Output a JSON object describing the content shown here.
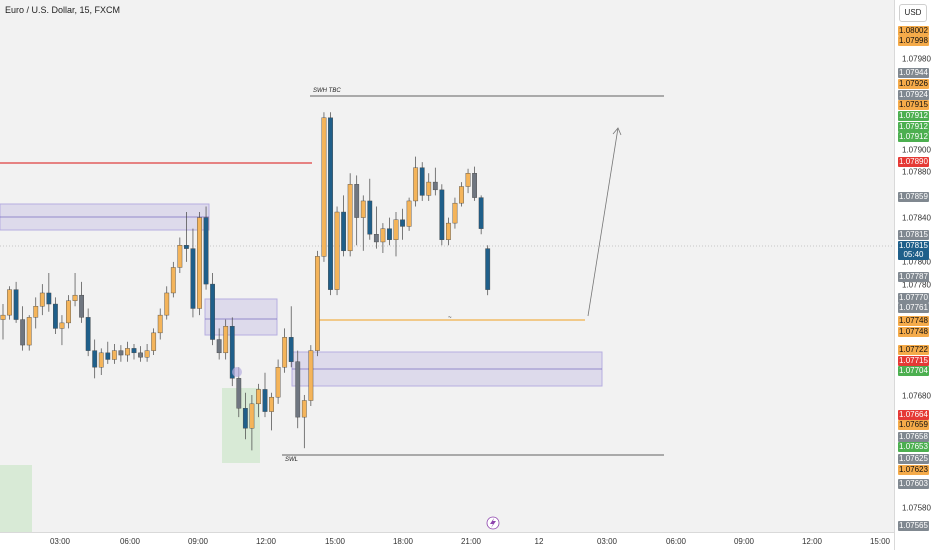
{
  "title": "Euro / U.S. Dollar, 15, FXCM",
  "currency_label": "USD",
  "colors": {
    "bull": "#f4b45a",
    "bear": "#1f5f8a",
    "bear_alt": "#6f7680",
    "zone_fill": "#b7aee0",
    "demand_fill": "#b9e0b4",
    "red_line": "#e04040",
    "orange_line": "#f0a020",
    "tag_gray": "#808890",
    "tag_orange": "#f5ab4a",
    "tag_green": "#4caf50",
    "tag_red": "#e53935",
    "tag_blue": "#1f5f8a"
  },
  "annotations": {
    "swh_label": "SWH TBC",
    "swl_label": "SWL",
    "mid_marker": "~",
    "lightning_icon": "lightning-icon"
  },
  "chart_data": {
    "type": "candlestick",
    "symbol": "EURUSD",
    "interval": "15",
    "ylim": [
      1.0756,
      1.0802
    ],
    "x_ticks": [
      "03:00",
      "06:00",
      "09:00",
      "12:00",
      "15:00",
      "18:00",
      "21:00",
      "12",
      "03:00",
      "06:00",
      "09:00",
      "12:00",
      "15:00"
    ],
    "y_ticks": [
      "1.07980",
      "1.07900",
      "1.07880",
      "1.07840",
      "1.07800",
      "1.07780",
      "1.07680",
      "1.07580"
    ],
    "price_tags": [
      {
        "label": "1.08002",
        "value": 1.08002,
        "color": "tag_orange"
      },
      {
        "label": "1.07998",
        "value": 1.07998,
        "color": "tag_orange"
      },
      {
        "label": "1.07944",
        "value": 1.07944,
        "color": "tag_gray"
      },
      {
        "label": "1.07926",
        "value": 1.07926,
        "color": "tag_orange"
      },
      {
        "label": "1.07924",
        "value": 1.07924,
        "color": "tag_gray"
      },
      {
        "label": "1.07915",
        "value": 1.07915,
        "color": "tag_orange"
      },
      {
        "label": "1.07912",
        "value": 1.07912,
        "color": "tag_green"
      },
      {
        "label": "1.07912",
        "value": 1.07912,
        "color": "tag_green"
      },
      {
        "label": "1.07912",
        "value": 1.07912,
        "color": "tag_green"
      },
      {
        "label": "1.07890",
        "value": 1.0789,
        "color": "tag_red"
      },
      {
        "label": "1.07859",
        "value": 1.07859,
        "color": "tag_gray"
      },
      {
        "label": "1.07815",
        "value": 1.07815,
        "color": "tag_gray"
      },
      {
        "label": "1.07815",
        "value": 1.07815,
        "color": "tag_blue"
      },
      {
        "label": "05:40",
        "value": 1.07805,
        "color": "tag_blue"
      },
      {
        "label": "1.07787",
        "value": 1.07787,
        "color": "tag_gray"
      },
      {
        "label": "1.07770",
        "value": 1.0777,
        "color": "tag_gray"
      },
      {
        "label": "1.07761",
        "value": 1.07761,
        "color": "tag_gray"
      },
      {
        "label": "1.07748",
        "value": 1.07748,
        "color": "tag_orange"
      },
      {
        "label": "1.07748",
        "value": 1.07748,
        "color": "tag_orange"
      },
      {
        "label": "1.07722",
        "value": 1.07722,
        "color": "tag_orange"
      },
      {
        "label": "1.07715",
        "value": 1.07715,
        "color": "tag_red"
      },
      {
        "label": "1.07704",
        "value": 1.07704,
        "color": "tag_green"
      },
      {
        "label": "1.07664",
        "value": 1.07664,
        "color": "tag_red"
      },
      {
        "label": "1.07659",
        "value": 1.07659,
        "color": "tag_orange"
      },
      {
        "label": "1.07658",
        "value": 1.07658,
        "color": "tag_gray"
      },
      {
        "label": "1.07653",
        "value": 1.07653,
        "color": "tag_green"
      },
      {
        "label": "1.07625",
        "value": 1.07625,
        "color": "tag_gray"
      },
      {
        "label": "1.07623",
        "value": 1.07623,
        "color": "tag_orange"
      },
      {
        "label": "1.07603",
        "value": 1.07603,
        "color": "tag_gray"
      },
      {
        "label": "1.07565",
        "value": 1.07565,
        "color": "tag_gray"
      }
    ],
    "levels": [
      {
        "name": "swh",
        "value": 1.07933
      },
      {
        "name": "red_level",
        "value": 1.0789
      },
      {
        "name": "orange_level",
        "value": 1.07747
      },
      {
        "name": "swl",
        "value": 1.0763
      },
      {
        "name": "current_price",
        "value": 1.07815
      }
    ],
    "candles": [
      [
        1.07748,
        1.07762,
        1.0773,
        1.07752
      ],
      [
        1.07752,
        1.07778,
        1.07748,
        1.07775
      ],
      [
        1.07775,
        1.07782,
        1.07745,
        1.07748
      ],
      [
        1.07748,
        1.0776,
        1.0772,
        1.07725
      ],
      [
        1.07725,
        1.07752,
        1.0772,
        1.0775
      ],
      [
        1.0775,
        1.07768,
        1.0774,
        1.0776
      ],
      [
        1.0776,
        1.0778,
        1.07752,
        1.07772
      ],
      [
        1.07772,
        1.0779,
        1.07755,
        1.07762
      ],
      [
        1.07762,
        1.07768,
        1.07735,
        1.0774
      ],
      [
        1.0774,
        1.07752,
        1.07725,
        1.07745
      ],
      [
        1.07745,
        1.0777,
        1.0774,
        1.07765
      ],
      [
        1.07765,
        1.0779,
        1.0776,
        1.0777
      ],
      [
        1.0777,
        1.07782,
        1.07745,
        1.0775
      ],
      [
        1.0775,
        1.07758,
        1.07715,
        1.0772
      ],
      [
        1.0772,
        1.0773,
        1.07695,
        1.07705
      ],
      [
        1.07705,
        1.07722,
        1.07698,
        1.07718
      ],
      [
        1.07718,
        1.07728,
        1.07708,
        1.07712
      ],
      [
        1.07712,
        1.07726,
        1.07708,
        1.0772
      ],
      [
        1.0772,
        1.07725,
        1.0771,
        1.07716
      ],
      [
        1.07716,
        1.07728,
        1.0771,
        1.07722
      ],
      [
        1.07722,
        1.07726,
        1.07712,
        1.07718
      ],
      [
        1.07718,
        1.07724,
        1.0771,
        1.07714
      ],
      [
        1.07714,
        1.07726,
        1.0771,
        1.0772
      ],
      [
        1.0772,
        1.0774,
        1.07716,
        1.07736
      ],
      [
        1.07736,
        1.07758,
        1.0773,
        1.07752
      ],
      [
        1.07752,
        1.07778,
        1.07748,
        1.07772
      ],
      [
        1.07772,
        1.078,
        1.07768,
        1.07795
      ],
      [
        1.07795,
        1.07822,
        1.0779,
        1.07815
      ],
      [
        1.07815,
        1.07845,
        1.078,
        1.07812
      ],
      [
        1.07812,
        1.0783,
        1.0775,
        1.07758
      ],
      [
        1.07758,
        1.07845,
        1.07752,
        1.0784
      ],
      [
        1.0784,
        1.0785,
        1.07775,
        1.0778
      ],
      [
        1.0778,
        1.0779,
        1.07725,
        1.0773
      ],
      [
        1.0773,
        1.0774,
        1.07712,
        1.07718
      ],
      [
        1.07718,
        1.07748,
        1.07712,
        1.07742
      ],
      [
        1.07742,
        1.0775,
        1.07688,
        1.07695
      ],
      [
        1.07695,
        1.07705,
        1.0766,
        1.07668
      ],
      [
        1.07668,
        1.07682,
        1.0764,
        1.0765
      ],
      [
        1.0765,
        1.0768,
        1.0763,
        1.07672
      ],
      [
        1.07672,
        1.0769,
        1.0766,
        1.07685
      ],
      [
        1.07685,
        1.077,
        1.0766,
        1.07665
      ],
      [
        1.07665,
        1.07682,
        1.07648,
        1.07678
      ],
      [
        1.07678,
        1.07712,
        1.07672,
        1.07705
      ],
      [
        1.07705,
        1.0774,
        1.077,
        1.07732
      ],
      [
        1.07732,
        1.0776,
        1.07705,
        1.0771
      ],
      [
        1.0771,
        1.0772,
        1.0765,
        1.0766
      ],
      [
        1.0766,
        1.0768,
        1.07632,
        1.07675
      ],
      [
        1.07675,
        1.07725,
        1.0767,
        1.0772
      ],
      [
        1.0772,
        1.0781,
        1.07715,
        1.07805
      ],
      [
        1.07805,
        1.07935,
        1.078,
        1.0793
      ],
      [
        1.0793,
        1.07935,
        1.0777,
        1.07775
      ],
      [
        1.07775,
        1.0785,
        1.0777,
        1.07845
      ],
      [
        1.07845,
        1.0786,
        1.07805,
        1.0781
      ],
      [
        1.0781,
        1.0788,
        1.07805,
        1.0787
      ],
      [
        1.0787,
        1.07878,
        1.07815,
        1.0784
      ],
      [
        1.0784,
        1.0786,
        1.0781,
        1.07855
      ],
      [
        1.07855,
        1.07875,
        1.0782,
        1.07825
      ],
      [
        1.07825,
        1.0785,
        1.07812,
        1.07818
      ],
      [
        1.07818,
        1.07835,
        1.07808,
        1.0783
      ],
      [
        1.0783,
        1.0784,
        1.07815,
        1.0782
      ],
      [
        1.0782,
        1.07845,
        1.07805,
        1.07838
      ],
      [
        1.07838,
        1.07848,
        1.0782,
        1.07832
      ],
      [
        1.07832,
        1.07858,
        1.07828,
        1.07855
      ],
      [
        1.07855,
        1.07895,
        1.0785,
        1.07885
      ],
      [
        1.07885,
        1.0789,
        1.07855,
        1.0786
      ],
      [
        1.0786,
        1.0788,
        1.07855,
        1.07872
      ],
      [
        1.07872,
        1.07885,
        1.0786,
        1.07865
      ],
      [
        1.07865,
        1.0787,
        1.07815,
        1.0782
      ],
      [
        1.0782,
        1.0784,
        1.07815,
        1.07835
      ],
      [
        1.07835,
        1.07858,
        1.0783,
        1.07853
      ],
      [
        1.07853,
        1.07872,
        1.0785,
        1.07868
      ],
      [
        1.07868,
        1.07884,
        1.07862,
        1.0788
      ],
      [
        1.0788,
        1.07886,
        1.07855,
        1.07858
      ],
      [
        1.07858,
        1.0786,
        1.07825,
        1.0783
      ],
      [
        1.07812,
        1.07815,
        1.0777,
        1.07775
      ]
    ]
  }
}
